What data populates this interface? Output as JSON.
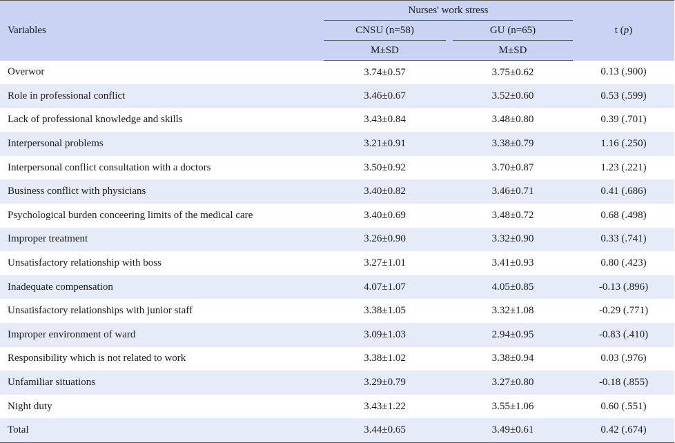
{
  "header": {
    "variables": "Variables",
    "group_title": "Nurses' work stress",
    "group1": "CNSU (n=58)",
    "group2": "GU (n=65)",
    "stat1": "M±SD",
    "stat2": "M±SD",
    "t_label": "t (",
    "t_p": "p",
    "t_close": ")"
  },
  "rows": [
    {
      "variable": "Overwor",
      "cnsu": "3.74±0.57",
      "gu": "3.75±0.62",
      "t": "0.13 (.900)"
    },
    {
      "variable": "Role in professional conflict",
      "cnsu": "3.46±0.67",
      "gu": "3.52±0.60",
      "t": "0.53 (.599)"
    },
    {
      "variable": "Lack of professional knowledge and skills",
      "cnsu": "3.43±0.84",
      "gu": "3.48±0.80",
      "t": "0.39 (.701)"
    },
    {
      "variable": "Interpersonal problems",
      "cnsu": "3.21±0.91",
      "gu": "3.38±0.79",
      "t": "1.16 (.250)"
    },
    {
      "variable": "Interpersonal conflict consultation with a doctors",
      "cnsu": "3.50±0.92",
      "gu": "3.70±0.87",
      "t": "1.23 (.221)"
    },
    {
      "variable": "Business conflict with physicians",
      "cnsu": "3.40±0.82",
      "gu": "3.46±0.71",
      "t": "0.41 (.686)"
    },
    {
      "variable": "Psychological burden conceering limits of the medical care",
      "cnsu": "3.40±0.69",
      "gu": "3.48±0.72",
      "t": "0.68 (.498)"
    },
    {
      "variable": "Improper treatment",
      "cnsu": "3.26±0.90",
      "gu": "3.32±0.90",
      "t": "0.33 (.741)"
    },
    {
      "variable": "Unsatisfactory relationship with boss",
      "cnsu": "3.27±1.01",
      "gu": "3.41±0.93",
      "t": "0.80 (.423)"
    },
    {
      "variable": "Inadequate compensation",
      "cnsu": "4.07±1.07",
      "gu": "4.05±0.85",
      "t": "-0.13 (.896)"
    },
    {
      "variable": "Unsatisfactory relationships with junior staff",
      "cnsu": "3.38±1.05",
      "gu": "3.32±1.08",
      "t": "-0.29 (.771)"
    },
    {
      "variable": "Improper environment of ward",
      "cnsu": "3.09±1.03",
      "gu": "2.94±0.95",
      "t": "-0.83 (.410)"
    },
    {
      "variable": "Responsibility which is not related to work",
      "cnsu": "3.38±1.02",
      "gu": "3.38±0.94",
      "t": "0.03 (.976)"
    },
    {
      "variable": "Unfamiliar situations",
      "cnsu": "3.29±0.79",
      "gu": "3.27±0.80",
      "t": "-0.18 (.855)"
    },
    {
      "variable": "Night duty",
      "cnsu": "3.43±1.22",
      "gu": "3.55±1.06",
      "t": "0.60 (.551)"
    },
    {
      "variable": "Total",
      "cnsu": "3.44±0.65",
      "gu": "3.49±0.61",
      "t": "0.42 (.674)"
    }
  ],
  "colors": {
    "header_bg": "#c9d4f5",
    "stripe_bg": "#e6ebfa",
    "rule": "#555555"
  }
}
